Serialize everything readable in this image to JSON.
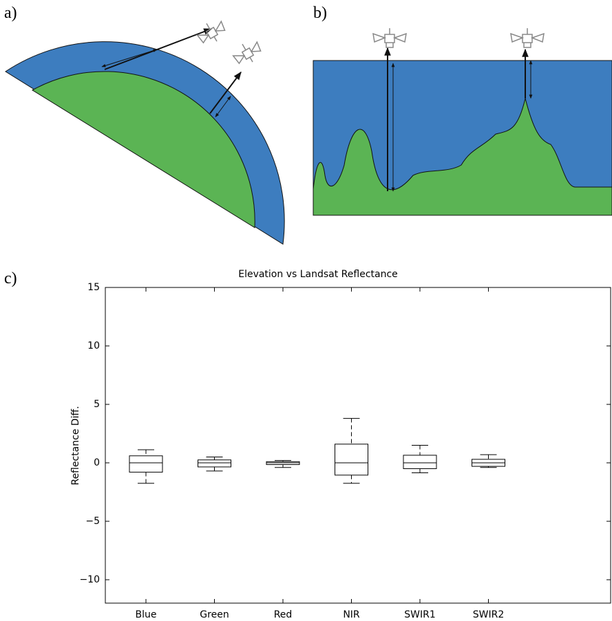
{
  "panel_labels": [
    "a)",
    "b)",
    "c)"
  ],
  "chart_data": {
    "type": "box",
    "title": "Elevation vs Landsat Reflectance",
    "ylabel": "Reflectance Diff.",
    "categories": [
      "Blue",
      "Green",
      "Red",
      "NIR",
      "SWIR1",
      "SWIR2"
    ],
    "boxes": [
      {
        "low": -1.75,
        "q1": -0.8,
        "median": 0,
        "q3": 0.6,
        "high": 1.12
      },
      {
        "low": -0.7,
        "q1": -0.35,
        "median": 0,
        "q3": 0.25,
        "high": 0.5
      },
      {
        "low": -0.4,
        "q1": -0.15,
        "median": 0,
        "q3": 0.1,
        "high": 0.2
      },
      {
        "low": -1.75,
        "q1": -1.05,
        "median": 0,
        "q3": 1.6,
        "high": 3.8
      },
      {
        "low": -0.85,
        "q1": -0.5,
        "median": 0,
        "q3": 0.65,
        "high": 1.5
      },
      {
        "low": -0.4,
        "q1": -0.3,
        "median": 0,
        "q3": 0.3,
        "high": 0.7
      }
    ],
    "ylim": [
      -12,
      15
    ],
    "yticks": [
      {
        "value": -10,
        "label": "−10"
      },
      {
        "value": -5,
        "label": "−5"
      },
      0,
      5,
      10,
      15
    ],
    "color": "#000000"
  }
}
